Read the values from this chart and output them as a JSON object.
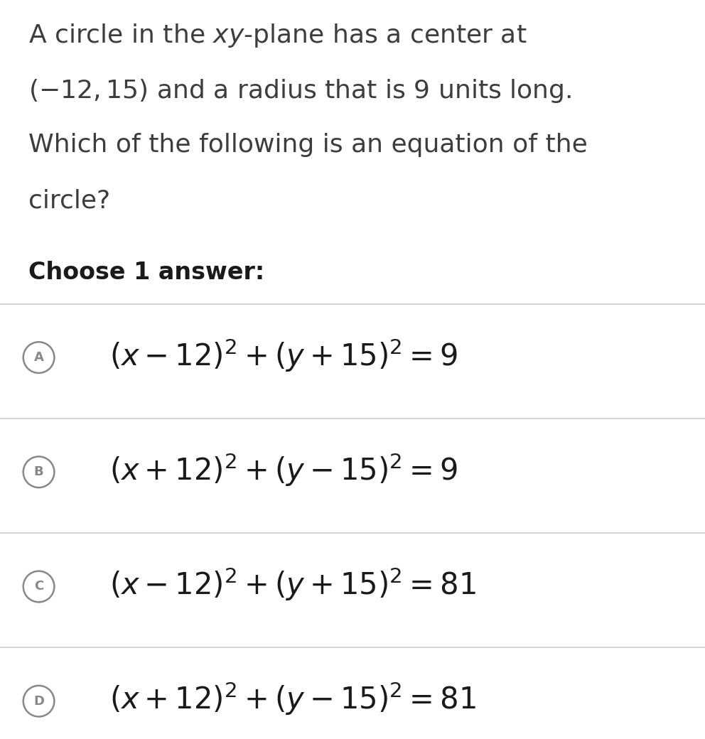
{
  "bg_color": "#ffffff",
  "text_color": "#3d3d3d",
  "dark_color": "#1a1a1a",
  "choose_label": "Choose 1 answer:",
  "answers": [
    {
      "label": "A",
      "formula": "$(x - 12)^2 + (y + 15)^2 = 9$"
    },
    {
      "label": "B",
      "formula": "$(x + 12)^2 + (y - 15)^2 = 9$"
    },
    {
      "label": "C",
      "formula": "$(x - 12)^2 + (y + 15)^2 = 81$"
    },
    {
      "label": "D",
      "formula": "$(x + 12)^2 + (y - 15)^2 = 81$"
    }
  ],
  "separator_color": "#cccccc",
  "circle_color": "#888888",
  "figsize": [
    9.92,
    10.4
  ],
  "dpi": 100
}
